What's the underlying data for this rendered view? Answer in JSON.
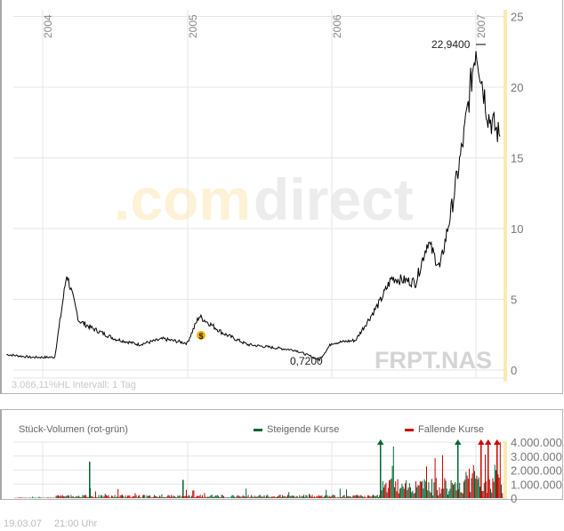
{
  "header": {
    "watermark_left": ".com",
    "watermark_right": "direct",
    "ticker": "FRPT.NAS"
  },
  "price_chart": {
    "info_text": "3.086,11%HL  Intervall: 1 Tag",
    "high_label": "22,9400",
    "low_label": "0,7200",
    "event_marker": "$"
  },
  "volume_chart": {
    "title": "Stück-Volumen (rot-grün)",
    "legend_up": "Steigende Kurse",
    "legend_down": "Fallende Kurse"
  },
  "footer": {
    "date": "19.03.07",
    "time": "21:00 Uhr"
  },
  "colors": {
    "line": "#000000",
    "up": "#006633",
    "down": "#cc0000",
    "grid": "#e6e6e6",
    "highlight_band": "#fbe9b4",
    "watermark_orange": "#fdf2d6",
    "watermark_gray": "#ececec"
  },
  "chart_data": [
    {
      "type": "line",
      "title": "FRPT.NAS",
      "xlabel": "",
      "ylabel": "",
      "x_ticks": [
        "2004",
        "2005",
        "2006",
        "2007"
      ],
      "y_ticks": [
        0,
        5,
        10,
        15,
        20,
        25
      ],
      "ylim": [
        0,
        25
      ],
      "grid": true,
      "annotations": [
        {
          "text": "22,9400",
          "type": "high",
          "x": "2007-01",
          "y": 22.94
        },
        {
          "text": "0,7200",
          "type": "low",
          "x": "2005-12",
          "y": 0.72
        },
        {
          "text": "$",
          "type": "dividend-event",
          "x": "2005-02",
          "y": 2.4
        }
      ],
      "x": [
        "2003-10",
        "2003-12",
        "2004-02",
        "2004-03",
        "2004-04",
        "2004-05",
        "2004-07",
        "2004-09",
        "2004-11",
        "2005-01",
        "2005-02",
        "2005-04",
        "2005-06",
        "2005-08",
        "2005-10",
        "2005-12",
        "2006-01",
        "2006-03",
        "2006-05",
        "2006-06",
        "2006-08",
        "2006-09",
        "2006-10",
        "2006-11",
        "2006-12",
        "2007-01",
        "2007-02",
        "2007-03"
      ],
      "values": [
        1.1,
        0.9,
        0.9,
        6.8,
        3.5,
        3.0,
        2.2,
        1.8,
        2.2,
        1.9,
        3.8,
        2.6,
        1.8,
        1.6,
        1.4,
        0.72,
        1.9,
        2.1,
        4.8,
        6.5,
        6.2,
        9.1,
        7.2,
        11.5,
        16.5,
        22.94,
        18.0,
        16.5
      ]
    },
    {
      "type": "bar",
      "title": "Stück-Volumen (rot-grün)",
      "legend": [
        "Steigende Kurse",
        "Fallende Kurse"
      ],
      "legend_position": "top",
      "y_ticks": [
        "0",
        "1.000.000",
        "2.000.000",
        "3.000.000",
        "4.000.000"
      ],
      "ylim": [
        0,
        4000000
      ],
      "series": [
        {
          "name": "Steigende Kurse",
          "color": "#006633",
          "peaks": [
            {
              "x": "2004-04",
              "value": 2600000
            },
            {
              "x": "2005-01",
              "value": 1300000
            },
            {
              "x": "2006-07",
              "value": 4000000
            },
            {
              "x": "2006-12",
              "value": 4000000
            }
          ]
        },
        {
          "name": "Fallende Kurse",
          "color": "#cc0000",
          "peaks": [
            {
              "x": "2007-01",
              "value": 4000000
            },
            {
              "x": "2007-02",
              "value": 4000000
            },
            {
              "x": "2007-03",
              "value": 4000000
            }
          ]
        }
      ]
    }
  ]
}
